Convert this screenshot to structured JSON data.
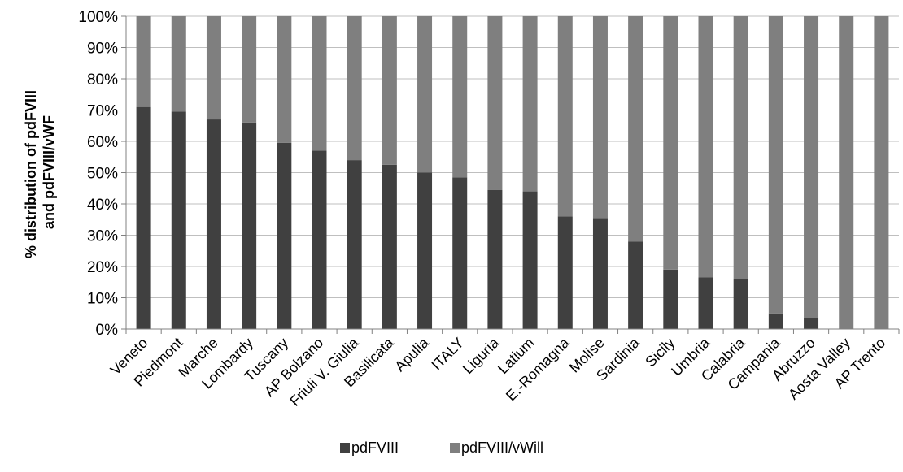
{
  "chart_data": {
    "type": "bar",
    "stacked": "percent",
    "title": "",
    "xlabel": "",
    "ylabel_lines": [
      "% distribution of pdFVIII",
      "and pdFVIII/vWF"
    ],
    "ylim": [
      0,
      100
    ],
    "y_ticks": [
      "0%",
      "10%",
      "20%",
      "30%",
      "40%",
      "50%",
      "60%",
      "70%",
      "80%",
      "90%",
      "100%"
    ],
    "grid": "horizontal",
    "legend_position": "bottom",
    "categories": [
      "Veneto",
      "Piedmont",
      "Marche",
      "Lombardy",
      "Tuscany",
      "AP Bolzano",
      "Friuli V. Giulia",
      "Basilicata",
      "Apulia",
      "ITALY",
      "Liguria",
      "Latium",
      "E.-Romagna",
      "Molise",
      "Sardinia",
      "Sicily",
      "Umbria",
      "Calabria",
      "Campania",
      "Abruzzo",
      "Aosta Valley",
      "AP Trento"
    ],
    "series": [
      {
        "name": "pdFVIII",
        "color": "#404040",
        "values": [
          71,
          69.5,
          67,
          66,
          59.5,
          57,
          54,
          52.5,
          50,
          48.5,
          44.5,
          44,
          36,
          35.5,
          28,
          19,
          16.5,
          16,
          5,
          3.5,
          0,
          0
        ]
      },
      {
        "name": "pdFVIII/vWill",
        "color": "#7f7f7f",
        "values": [
          29,
          30.5,
          33,
          34,
          40.5,
          43,
          46,
          47.5,
          50,
          51.5,
          55.5,
          56,
          64,
          64.5,
          72,
          81,
          83.5,
          84,
          95,
          96.5,
          100,
          100
        ]
      }
    ]
  }
}
